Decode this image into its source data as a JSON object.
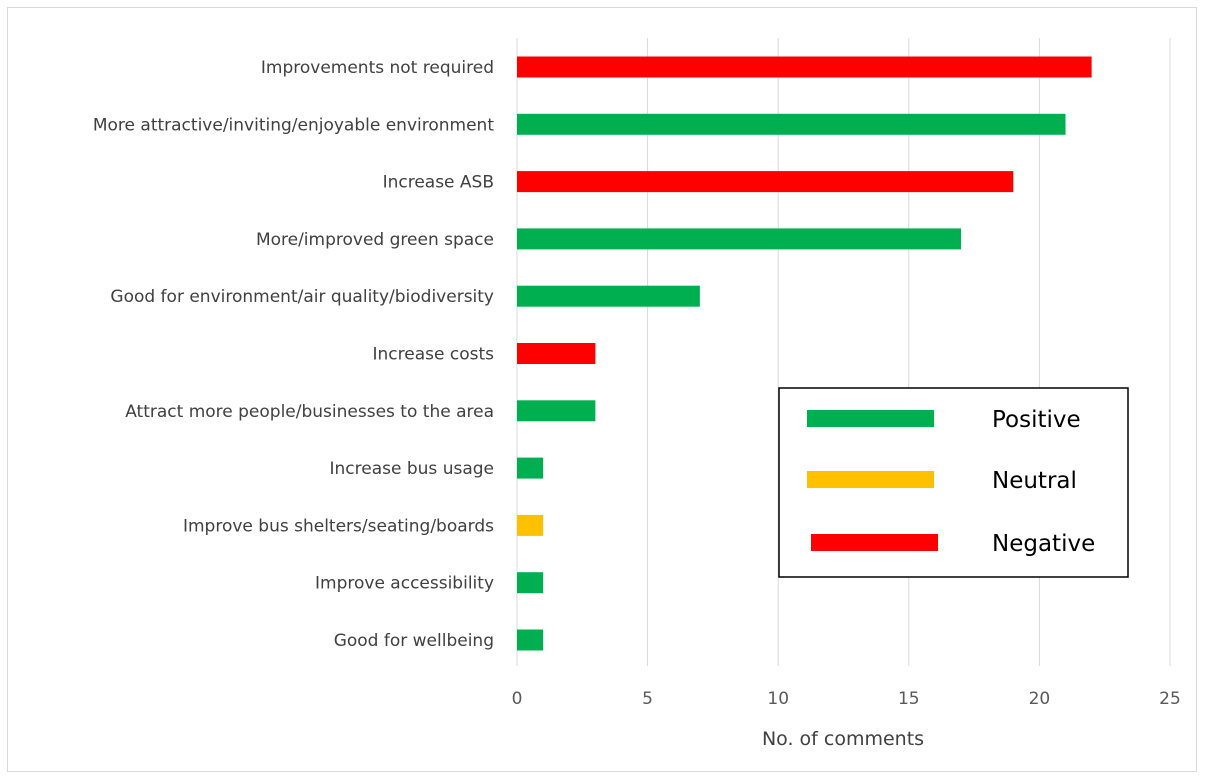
{
  "chart_data": {
    "type": "bar",
    "orientation": "horizontal",
    "categories": [
      "Improvements not required",
      "More attractive/inviting/enjoyable environment",
      "Increase ASB",
      "More/improved green space",
      "Good for environment/air quality/biodiversity",
      "Increase costs",
      "Attract more people/businesses to the area",
      "Increase bus usage",
      "Improve bus shelters/seating/boards",
      "Improve accessibility",
      "Good for wellbeing"
    ],
    "values": [
      22,
      21,
      19,
      17,
      7,
      3,
      3,
      1,
      1,
      1,
      1
    ],
    "sentiment": [
      "Negative",
      "Positive",
      "Negative",
      "Positive",
      "Positive",
      "Negative",
      "Positive",
      "Positive",
      "Neutral",
      "Positive",
      "Positive"
    ],
    "xlabel": "No. of comments",
    "xlim": [
      0,
      25
    ],
    "xticks": [
      "0",
      "5",
      "10",
      "15",
      "20",
      "25"
    ],
    "grid": "vertical",
    "legend_position": "lower-right",
    "legend": [
      {
        "label": "Positive",
        "color": "#00b050"
      },
      {
        "label": "Neutral",
        "color": "#ffc000"
      },
      {
        "label": "Negative",
        "color": "#ff0000"
      }
    ]
  }
}
